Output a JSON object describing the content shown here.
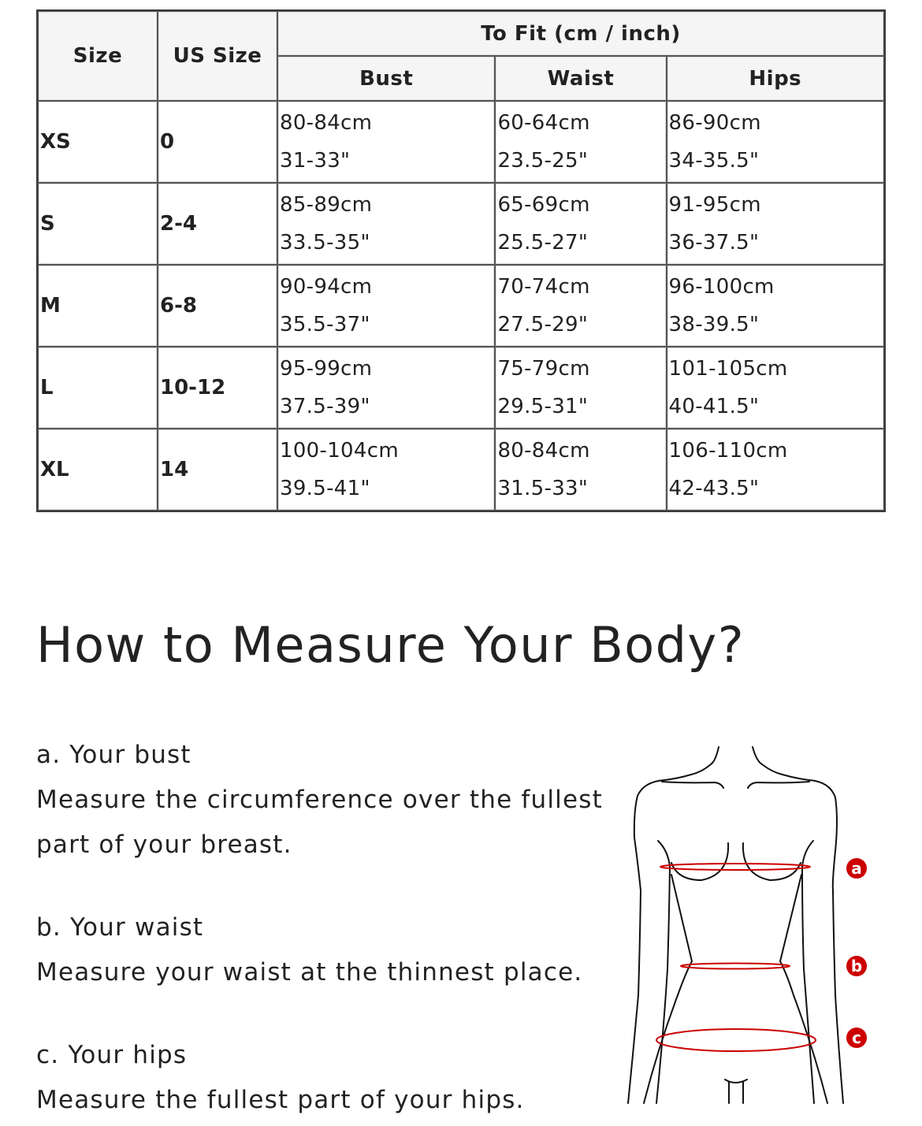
{
  "size_table": {
    "headers": {
      "size": "Size",
      "us_size": "US Size",
      "to_fit": "To Fit (cm / inch)",
      "bust": "Bust",
      "waist": "Waist",
      "hips": "Hips"
    },
    "rows": [
      {
        "size": "XS",
        "us": "0",
        "bust_cm": "80-84cm",
        "bust_in": "31-33\"",
        "waist_cm": "60-64cm",
        "waist_in": "23.5-25\"",
        "hips_cm": "86-90cm",
        "hips_in": "34-35.5\""
      },
      {
        "size": "S",
        "us": "2-4",
        "bust_cm": "85-89cm",
        "bust_in": "33.5-35\"",
        "waist_cm": "65-69cm",
        "waist_in": "25.5-27\"",
        "hips_cm": "91-95cm",
        "hips_in": "36-37.5\""
      },
      {
        "size": "M",
        "us": "6-8",
        "bust_cm": "90-94cm",
        "bust_in": "35.5-37\"",
        "waist_cm": "70-74cm",
        "waist_in": "27.5-29\"",
        "hips_cm": "96-100cm",
        "hips_in": "38-39.5\""
      },
      {
        "size": "L",
        "us": "10-12",
        "bust_cm": "95-99cm",
        "bust_in": "37.5-39\"",
        "waist_cm": "75-79cm",
        "waist_in": "29.5-31\"",
        "hips_cm": "101-105cm",
        "hips_in": "40-41.5\""
      },
      {
        "size": "XL",
        "us": "14",
        "bust_cm": "100-104cm",
        "bust_in": "39.5-41\"",
        "waist_cm": "80-84cm",
        "waist_in": "31.5-33\"",
        "hips_cm": "106-110cm",
        "hips_in": "42-43.5\""
      }
    ]
  },
  "measure": {
    "title": "How to Measure Your Body?",
    "items": [
      {
        "heading": "a. Your bust",
        "line1": "Measure the circumference over the fullest",
        "line2": "part of your breast."
      },
      {
        "heading": "b. Your waist",
        "line1": "Measure your waist at the thinnest place."
      },
      {
        "heading": "c. Your hips",
        "line1": "Measure the fullest part of your hips."
      }
    ],
    "figure_labels": [
      "a",
      "b",
      "c"
    ],
    "accent_color": "#cc0000"
  }
}
